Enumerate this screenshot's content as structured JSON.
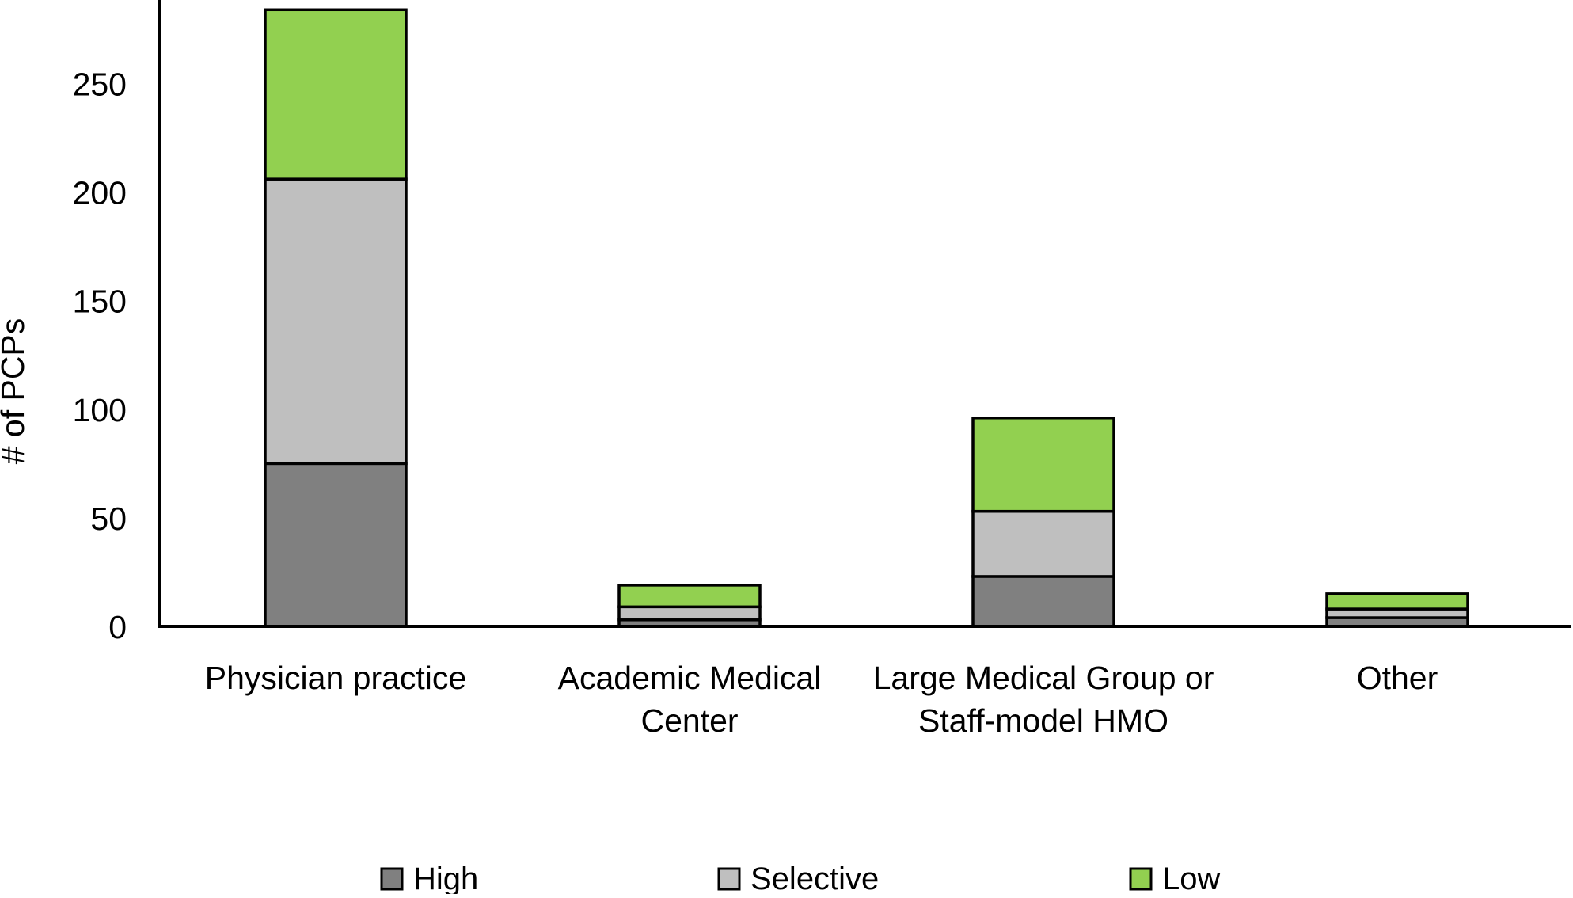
{
  "chart_data": {
    "type": "bar",
    "stacked": true,
    "title": "",
    "xlabel": "",
    "ylabel": "# of PCPs",
    "categories": [
      "Physician practice",
      "Academic Medical Center",
      "Large Medical Group or Staff-model HMO",
      "Other"
    ],
    "category_lines": [
      [
        "Physician practice"
      ],
      [
        "Academic Medical",
        "Center"
      ],
      [
        "Large Medical Group or",
        "Staff-model HMO"
      ],
      [
        "Other"
      ]
    ],
    "series": [
      {
        "name": "High",
        "color": "#808080",
        "values": [
          75,
          3,
          23,
          4
        ]
      },
      {
        "name": "Selective",
        "color": "#BFBFBF",
        "values": [
          131,
          6,
          30,
          4
        ]
      },
      {
        "name": "Low",
        "color": "#92D050",
        "values": [
          78,
          10,
          43,
          7
        ]
      }
    ],
    "totals": [
      284,
      19,
      96,
      15
    ],
    "y_ticks": [
      0,
      50,
      100,
      150,
      200,
      250
    ],
    "ylim": [
      0,
      289
    ],
    "grid": false,
    "legend_position": "bottom",
    "axis_color": "#000000",
    "bar_border_color": "#000000"
  }
}
